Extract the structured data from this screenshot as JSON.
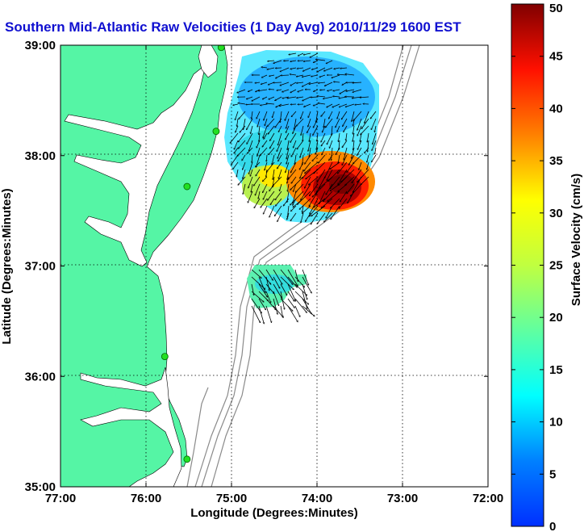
{
  "chart_data": {
    "type": "heatmap",
    "title": "Southern Mid-Atlantic Raw Velocities (1 Day Avg) 2010/11/29 1600 EST",
    "xlabel": "Longitude (Degrees:Minutes)",
    "ylabel": "Latitude (Degrees:Minutes)",
    "x_ticks": [
      "77:00",
      "76:00",
      "75:00",
      "74:00",
      "73:00",
      "72:00"
    ],
    "y_ticks": [
      "39:00",
      "38:00",
      "37:00",
      "36:00",
      "35:00"
    ],
    "xlim": [
      -77,
      -72
    ],
    "ylim": [
      35,
      39
    ],
    "grid": true,
    "colorbar": {
      "label": "Surface Velocity (cm/s)",
      "ticks": [
        "50",
        "45",
        "40",
        "35",
        "30",
        "25",
        "20",
        "15",
        "10",
        "5",
        "0"
      ],
      "range": [
        0,
        50
      ],
      "colormap": "jet"
    },
    "stations": [
      {
        "lon": -75.12,
        "lat": 38.98
      },
      {
        "lon": -75.18,
        "lat": 38.22
      },
      {
        "lon": -75.52,
        "lat": 37.72
      },
      {
        "lon": -75.78,
        "lat": 36.18
      },
      {
        "lon": -75.52,
        "lat": 35.25
      }
    ],
    "velocity_regions": [
      {
        "name": "northern offshore field",
        "lon_range": [
          -75.0,
          -73.3
        ],
        "lat_range": [
          37.55,
          38.95
        ],
        "speed_cm_s": [
          5,
          48
        ],
        "max_near": {
          "lon": -73.85,
          "lat": 37.8
        }
      },
      {
        "name": "southern patch",
        "lon_range": [
          -74.85,
          -74.1
        ],
        "lat_range": [
          36.55,
          36.98
        ],
        "speed_cm_s": [
          12,
          22
        ]
      }
    ]
  },
  "colors": {
    "land": "#55f5a5",
    "title": "#1010d0",
    "frame": "#000000",
    "bathymetry": "#888888"
  }
}
